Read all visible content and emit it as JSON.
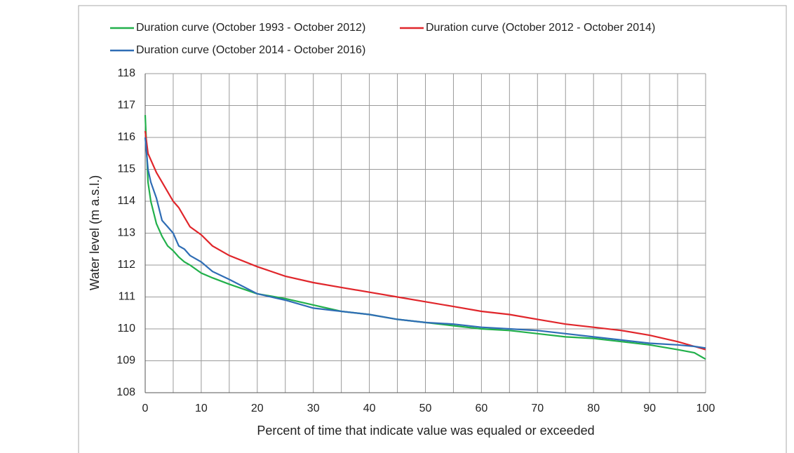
{
  "chart_data": {
    "type": "line",
    "xlabel": "Percent of time that indicate value was equaled or exceeded",
    "ylabel": "Water level (m a.s.l.)",
    "x": [
      0,
      0.5,
      1,
      2,
      3,
      4,
      5,
      6,
      7,
      8,
      10,
      12,
      15,
      20,
      25,
      30,
      35,
      40,
      45,
      50,
      55,
      60,
      65,
      70,
      75,
      80,
      85,
      90,
      95,
      98,
      100
    ],
    "series": [
      {
        "name": "Duration curve (October 1993 - October 2012)",
        "color": "#22b04b",
        "values": [
          116.7,
          114.6,
          114.0,
          113.3,
          112.9,
          112.6,
          112.45,
          112.25,
          112.1,
          112.0,
          111.75,
          111.6,
          111.4,
          111.1,
          110.95,
          110.75,
          110.55,
          110.45,
          110.3,
          110.2,
          110.1,
          110.0,
          109.95,
          109.85,
          109.75,
          109.7,
          109.6,
          109.5,
          109.35,
          109.25,
          109.05
        ]
      },
      {
        "name": "Duration curve (October 2012 - October 2014)",
        "color": "#e0262b",
        "values": [
          116.2,
          115.5,
          115.3,
          114.9,
          114.6,
          114.3,
          114.0,
          113.8,
          113.5,
          113.2,
          112.95,
          112.6,
          112.3,
          111.95,
          111.65,
          111.45,
          111.3,
          111.15,
          111.0,
          110.85,
          110.7,
          110.55,
          110.45,
          110.3,
          110.15,
          110.05,
          109.95,
          109.8,
          109.6,
          109.45,
          109.35
        ]
      },
      {
        "name": "Duration curve (October 2014 - October 2016)",
        "color": "#2f6db5",
        "values": [
          116.0,
          115.0,
          114.6,
          114.1,
          113.4,
          113.2,
          113.0,
          112.6,
          112.5,
          112.3,
          112.1,
          111.8,
          111.55,
          111.1,
          110.9,
          110.65,
          110.55,
          110.45,
          110.3,
          110.2,
          110.15,
          110.05,
          110.0,
          109.95,
          109.85,
          109.75,
          109.65,
          109.55,
          109.5,
          109.45,
          109.4
        ]
      }
    ],
    "xlim": [
      0,
      100
    ],
    "xticks": [
      0,
      10,
      20,
      30,
      40,
      50,
      60,
      70,
      80,
      90,
      100
    ],
    "xgrid": [
      5,
      15,
      25,
      35,
      45,
      55,
      65,
      75,
      85,
      95
    ],
    "ylim": [
      108,
      118
    ],
    "yticks": [
      108,
      109,
      110,
      111,
      112,
      113,
      114,
      115,
      116,
      117,
      118
    ],
    "grid": true,
    "legend": "top"
  }
}
